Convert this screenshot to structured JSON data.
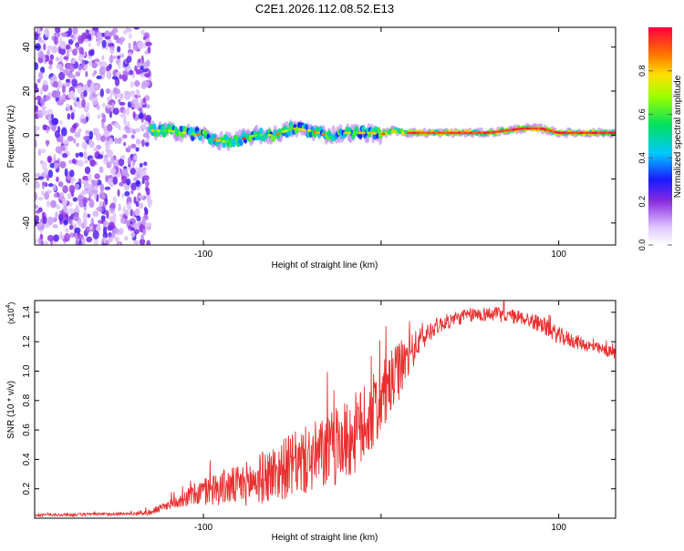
{
  "title": "C2E1.2026.112.08.52.E13",
  "chart_data": [
    {
      "type": "heatmap",
      "title": "C2E1.2026.112.08.52.E13",
      "xlabel": "Height of straight line (km)",
      "ylabel": "Frequency (Hz)",
      "xlim": [
        -195,
        132
      ],
      "ylim": [
        -50,
        49
      ],
      "x_ticks": [
        -100,
        0,
        100
      ],
      "x_tick_labels": [
        "-100",
        "",
        "100"
      ],
      "y_ticks": [
        -40,
        -20,
        0,
        20,
        40
      ],
      "y_tick_labels": [
        "-40",
        "-20",
        "0",
        "20",
        "40"
      ],
      "ridge": {
        "x": [
          -130,
          -120,
          -110,
          -100,
          -90,
          -80,
          -70,
          -60,
          -50,
          -40,
          -30,
          -20,
          -10,
          -5,
          0,
          5,
          10,
          15,
          20,
          40,
          60,
          80,
          90,
          95,
          100,
          110,
          120,
          132
        ],
        "frequency_hz": [
          2,
          2,
          1,
          0,
          -3,
          -2,
          0,
          0,
          3,
          2,
          0,
          1,
          1,
          1,
          0,
          2,
          2,
          1,
          1,
          1,
          1,
          3,
          3,
          2,
          1,
          1,
          1,
          1
        ]
      },
      "noise_region_x": [
        -195,
        -130
      ],
      "colorbar": {
        "label": "Normalized spectral amplitude",
        "range": [
          0,
          1
        ],
        "ticks": [
          0.0,
          0.2,
          0.4,
          0.6,
          0.8
        ],
        "tick_labels": [
          "0.0",
          "0.2",
          "0.4",
          "0.6",
          "0.8"
        ]
      }
    },
    {
      "type": "line",
      "xlabel": "Height of straight line (km)",
      "ylabel": "SNR (10 * v/v)",
      "y_multiplier": "(x10",
      "y_multiplier_exp": "4",
      "y_multiplier_close": ")",
      "xlim": [
        -195,
        132
      ],
      "ylim": [
        0,
        1.48
      ],
      "x_ticks": [
        -100,
        0,
        100
      ],
      "x_tick_labels": [
        "-100",
        "",
        "100"
      ],
      "y_ticks": [
        0.2,
        0.4,
        0.6,
        0.8,
        1.0,
        1.2,
        1.4
      ],
      "y_tick_labels": [
        "0.2",
        "0.4",
        "0.6",
        "0.8",
        "1.0",
        "1.2",
        "1.4"
      ],
      "series": [
        {
          "name": "SNR",
          "color": "#e83030",
          "x": [
            -195,
            -140,
            -130,
            -120,
            -110,
            -100,
            -90,
            -80,
            -70,
            -60,
            -50,
            -40,
            -30,
            -20,
            -10,
            0,
            10,
            20,
            30,
            40,
            50,
            60,
            70,
            80,
            90,
            100,
            110,
            120,
            132
          ],
          "y": [
            0.02,
            0.03,
            0.04,
            0.09,
            0.14,
            0.18,
            0.21,
            0.22,
            0.26,
            0.31,
            0.36,
            0.4,
            0.45,
            0.52,
            0.62,
            0.8,
            1.0,
            1.18,
            1.3,
            1.35,
            1.38,
            1.39,
            1.38,
            1.36,
            1.32,
            1.24,
            1.2,
            1.16,
            1.12
          ],
          "noise_amplitude": [
            0.01,
            0.01,
            0.02,
            0.03,
            0.06,
            0.1,
            0.12,
            0.14,
            0.17,
            0.2,
            0.22,
            0.24,
            0.26,
            0.28,
            0.28,
            0.25,
            0.2,
            0.1,
            0.06,
            0.05,
            0.05,
            0.05,
            0.05,
            0.05,
            0.06,
            0.06,
            0.05,
            0.04,
            0.04
          ]
        }
      ]
    }
  ],
  "colors": {
    "frame": "#000000",
    "line": "#e83030",
    "background": "#ffffff"
  }
}
